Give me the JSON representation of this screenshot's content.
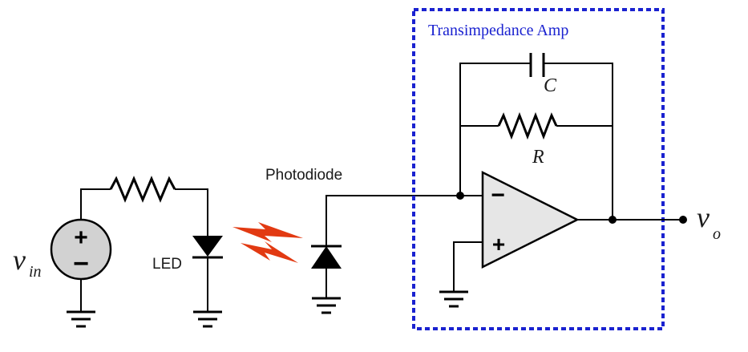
{
  "labels": {
    "box_title": "Transimpedance Amp",
    "photodiode": "Photodiode",
    "led": "LED",
    "source_main": "v",
    "source_sub": "in",
    "output_main": "v",
    "output_sub": "o",
    "capacitor": "C",
    "resistor": "R",
    "plus_sign": "+",
    "minus_sign": "−"
  },
  "colors": {
    "box_border": "#1a22d0",
    "light_rays": "#e23a12",
    "opamp_fill": "#e6e6e6",
    "source_fill": "#d2d2d2"
  }
}
